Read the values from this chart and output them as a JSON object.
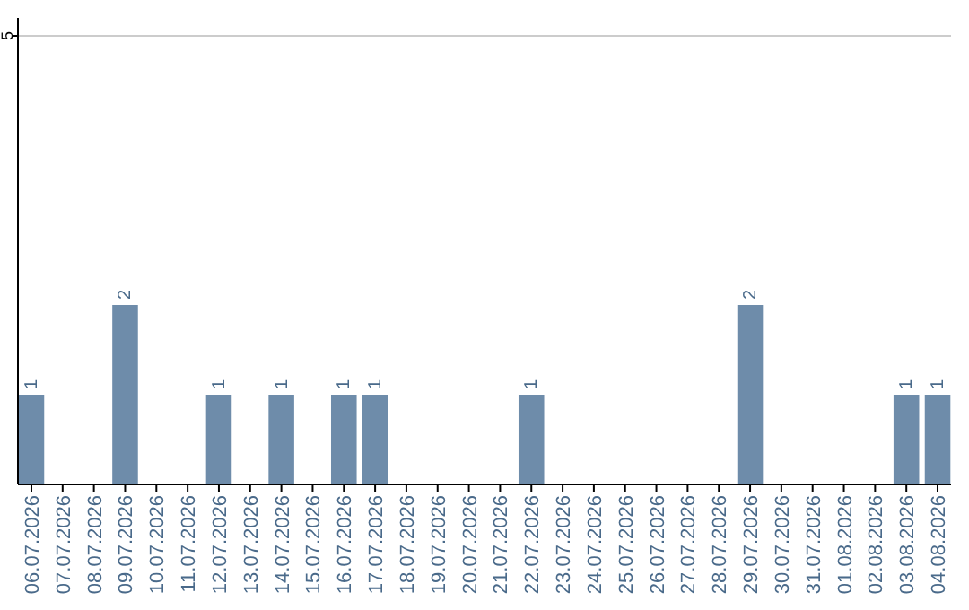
{
  "chart_data": {
    "type": "bar",
    "categories": [
      "06.07.2026",
      "07.07.2026",
      "08.07.2026",
      "09.07.2026",
      "10.07.2026",
      "11.07.2026",
      "12.07.2026",
      "13.07.2026",
      "14.07.2026",
      "15.07.2026",
      "16.07.2026",
      "17.07.2026",
      "18.07.2026",
      "19.07.2026",
      "20.07.2026",
      "21.07.2026",
      "22.07.2026",
      "23.07.2026",
      "24.07.2026",
      "25.07.2026",
      "26.07.2026",
      "27.07.2026",
      "28.07.2026",
      "29.07.2026",
      "30.07.2026",
      "31.07.2026",
      "01.08.2026",
      "02.08.2026",
      "03.08.2026",
      "04.08.2026"
    ],
    "values": [
      1,
      0,
      0,
      2,
      0,
      0,
      1,
      0,
      1,
      0,
      1,
      1,
      0,
      0,
      0,
      0,
      1,
      0,
      0,
      0,
      0,
      0,
      0,
      2,
      0,
      0,
      0,
      0,
      1,
      1
    ],
    "value_labels": [
      "1",
      null,
      null,
      "2",
      null,
      null,
      "1",
      null,
      "1",
      null,
      "1",
      "1",
      null,
      null,
      null,
      null,
      "1",
      null,
      null,
      null,
      null,
      null,
      null,
      "2",
      null,
      null,
      null,
      null,
      "1",
      "1"
    ],
    "color": "#6e8caa",
    "ylim": [
      0,
      5
    ],
    "yticks": [
      5
    ],
    "ref_lines": [
      {
        "axis": "y",
        "value": 5,
        "color": "#cccccc"
      }
    ]
  }
}
